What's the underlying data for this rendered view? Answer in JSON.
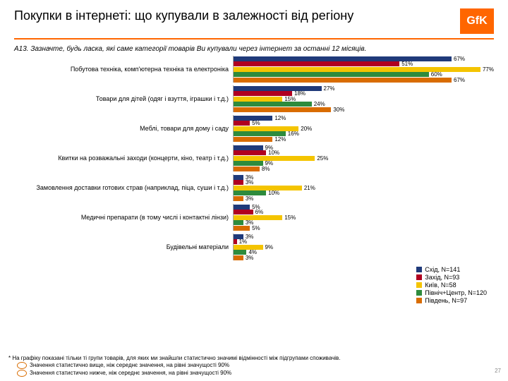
{
  "title": "Покупки в інтернеті: що купували в залежності від регіону",
  "logo": "GfK",
  "subtitle": "A13. Зазначте, будь ласка, які саме категорії товарів Ви купували через інтернет за останні 12 місяців.",
  "max_percent": 80,
  "colors": {
    "accent": "#ff6600",
    "series": [
      "#1f3a7a",
      "#b00020",
      "#f4c400",
      "#2e8b3d",
      "#d96c00"
    ]
  },
  "legend": [
    {
      "label": "Схід, N=141"
    },
    {
      "label": "Захід, N=93"
    },
    {
      "label": "Київ, N=58"
    },
    {
      "label": "Північ+Центр, N=120"
    },
    {
      "label": "Південь, N=97"
    }
  ],
  "categories": [
    {
      "label": "Побутова техніка, комп'ютерна техніка та електроніка",
      "values": [
        67,
        51,
        77,
        60,
        67
      ]
    },
    {
      "label": "Товари для дітей (одяг і взуття, іграшки і т.д.)",
      "values": [
        27,
        18,
        15,
        24,
        30
      ]
    },
    {
      "label": "Меблі, товари для дому і саду",
      "values": [
        12,
        5,
        20,
        16,
        12
      ]
    },
    {
      "label": "Квитки на розважальні заходи (концерти, кіно, театр і т.д.)",
      "values": [
        9,
        10,
        25,
        9,
        8
      ]
    },
    {
      "label": "Замовлення доставки готових страв (наприклад, піца, суши і т.д.)",
      "values": [
        3,
        3,
        21,
        10,
        3
      ]
    },
    {
      "label": "Медичні препарати (в тому числі і контактні лінзи)",
      "values": [
        5,
        6,
        15,
        3,
        5
      ]
    },
    {
      "label": "Будівельні матеріали",
      "values": [
        3,
        1,
        9,
        4,
        3
      ]
    }
  ],
  "footnote_main": "* На графіку показані тільки ті групи товарів, для яких ми знайшли статистично значимі відмінності між підгрупами споживачів.",
  "footnote_up": "Значення статистично вище, ніж середнє значення, на рівні значущості 90%",
  "footnote_down": "Значення статистично нижче, ніж середнє значення, на рівні значущості 90%",
  "page_num": "27"
}
